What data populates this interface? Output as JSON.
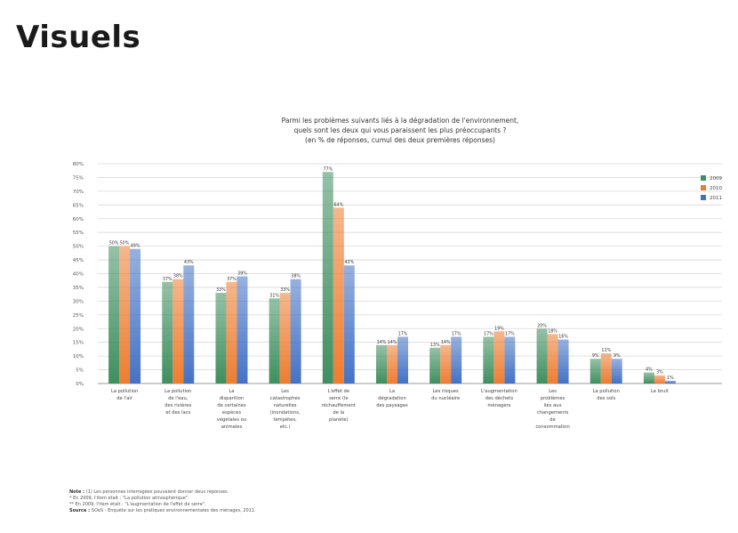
{
  "page": {
    "title": "Visuels"
  },
  "chart_data": {
    "type": "bar",
    "title_lines": [
      "Parmi les problèmes suivants liés à la dégradation de l'environnement,",
      "quels sont les deux qui vous paraissent les plus préoccupants ?",
      "(en % de réponses, cumul des deux premières réponses)"
    ],
    "ylim": [
      0,
      80
    ],
    "yticks": [
      0,
      5,
      10,
      15,
      20,
      25,
      30,
      35,
      40,
      45,
      50,
      55,
      60,
      65,
      70,
      75,
      80
    ],
    "ytick_labels": [
      "0%",
      "5%",
      "10%",
      "15%",
      "20%",
      "25%",
      "30%",
      "35%",
      "40%",
      "45%",
      "50%",
      "55%",
      "60%",
      "65%",
      "70%",
      "75%",
      "80%"
    ],
    "grid": true,
    "legend_position": "top-right",
    "categories": [
      "La pollution de l'air",
      "La pollution de l'eau, des rivières et des lacs",
      "La disparition de certaines espèces végétales ou animales",
      "Les catastrophes naturelles (inondations, tempêtes, etc.)",
      "L'effet de serre (le réchauffement de la planète)",
      "La dégradation des paysages",
      "Les risques du nucléaire",
      "L'augmentation des déchets ménagers",
      "Les problèmes liés aux changements de consommation",
      "La pollution des sols",
      "Le bruit"
    ],
    "series": [
      {
        "name": "2009",
        "color": "#3f8f5f",
        "values": [
          50,
          37,
          33,
          31,
          77,
          14,
          13,
          17,
          20,
          9,
          4
        ]
      },
      {
        "name": "2010",
        "color": "#ed7d31",
        "values": [
          50,
          38,
          37,
          33,
          64,
          14,
          14,
          19,
          18,
          11,
          3
        ]
      },
      {
        "name": "2011",
        "color": "#4472c4",
        "values": [
          49,
          43,
          39,
          38,
          43,
          17,
          17,
          17,
          16,
          9,
          1
        ]
      }
    ],
    "value_labels": [
      [
        "50%",
        "37%",
        "33%",
        "31%",
        "77%",
        "14%",
        "13%",
        "17%",
        "20%",
        "9%",
        "4%"
      ],
      [
        "50%",
        "38%",
        "37%",
        "33%",
        "64%",
        "14%",
        "14%",
        "19%",
        "18%",
        "11%",
        "3%"
      ],
      [
        "49%",
        "43%",
        "39%",
        "38%",
        "43%",
        "17%",
        "17%",
        "17%",
        "16%",
        "9%",
        "1%"
      ]
    ]
  },
  "notes": [
    {
      "label": "Note :",
      "text": "(1) Les personnes interrogées pouvaient donner deux réponses."
    },
    {
      "label": "",
      "text": "* En 2009, l'item était : \"La pollution atmosphérique\"."
    },
    {
      "label": "",
      "text": "** En 2009, l'item était : \"L'augmentation de l'effet de serre\"."
    },
    {
      "label": "Source :",
      "text": "SOeS - Enquête sur les pratiques environnementales des ménages, 2011."
    }
  ]
}
